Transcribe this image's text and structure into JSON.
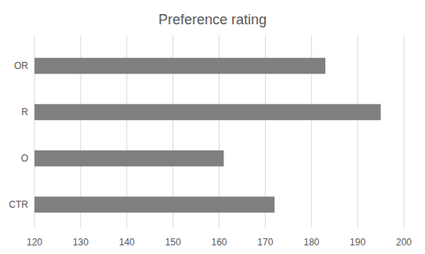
{
  "chart_data": {
    "type": "bar",
    "title": "Preference rating",
    "orientation": "horizontal",
    "categories": [
      "CTR",
      "O",
      "R",
      "OR"
    ],
    "values": [
      172,
      161,
      195,
      183
    ],
    "color": "#808080",
    "xlim": [
      120,
      200
    ],
    "xticks": [
      120,
      130,
      140,
      150,
      160,
      170,
      180,
      190,
      200
    ],
    "grid": true
  }
}
